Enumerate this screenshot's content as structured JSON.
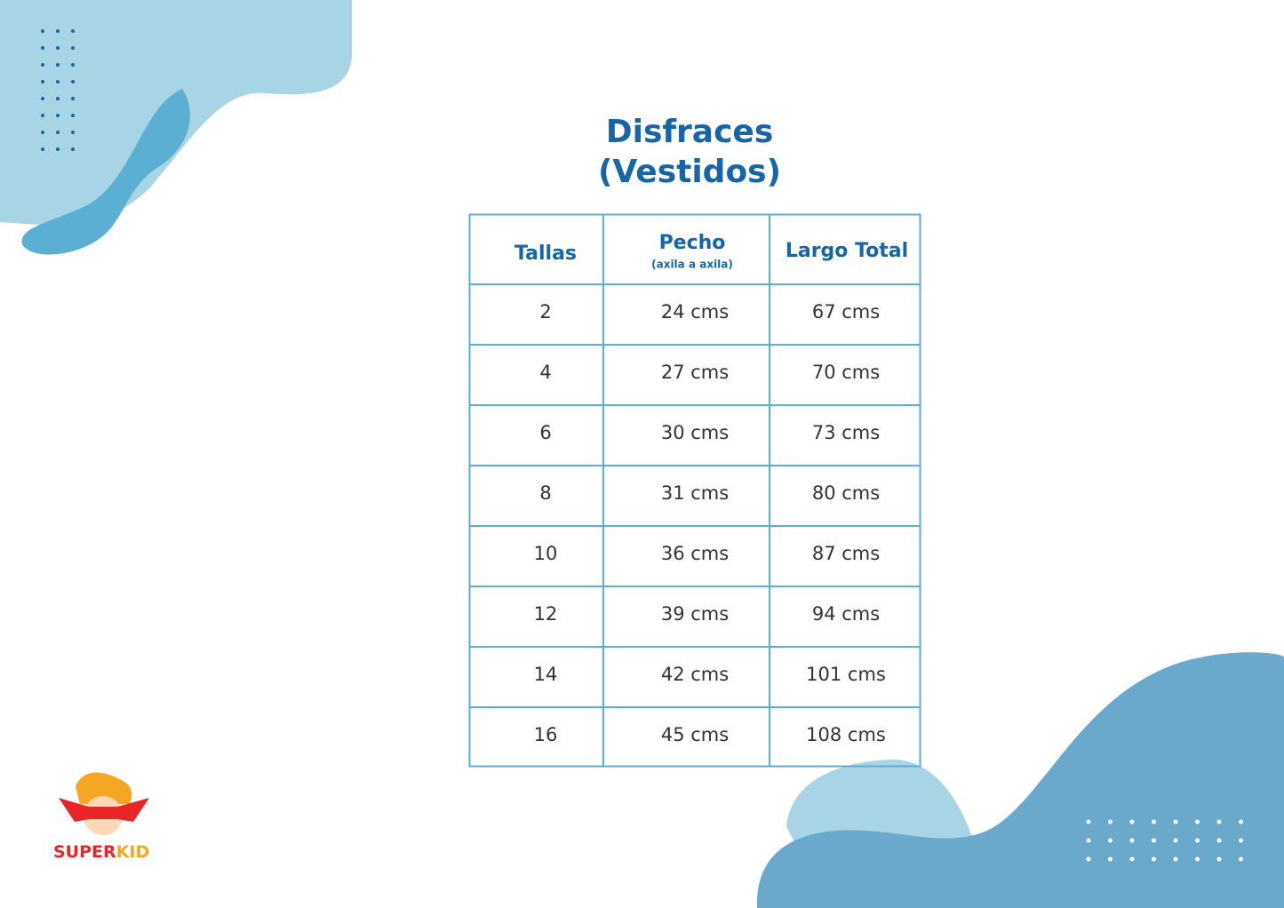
{
  "title": [
    "Disfraces",
    "(Vestidos)"
  ],
  "table": {
    "header": {
      "tallas": "Tallas",
      "pecho": "Pecho",
      "pecho_note": "(axila a axila)",
      "largo": "Largo Total"
    },
    "rows": [
      [
        "2",
        "24 cms",
        "67 cms"
      ],
      [
        "4",
        "27 cms",
        "70 cms"
      ],
      [
        "6",
        "30 cms",
        "73 cms"
      ],
      [
        "8",
        "31 cms",
        "80 cms"
      ],
      [
        "10",
        "36  cms",
        "87 cms"
      ],
      [
        "12",
        "39 cms",
        "94 cms"
      ],
      [
        "14",
        "42 cms",
        "101 cms"
      ],
      [
        "16",
        "45 cms",
        "108 cms"
      ]
    ]
  },
  "logo": [
    "SUPER",
    "KID"
  ]
}
